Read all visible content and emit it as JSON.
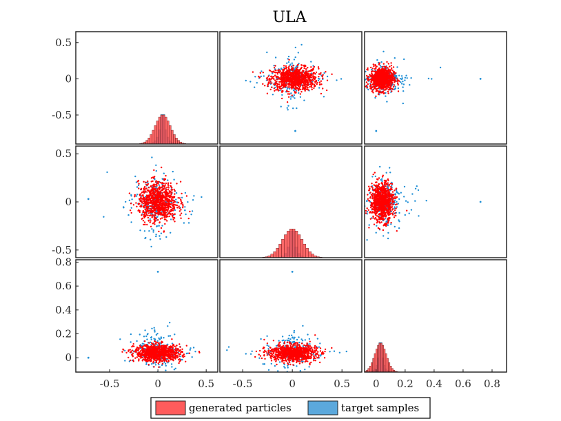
{
  "chart_data": {
    "type": "scatter",
    "subtype": "pair-plot-matrix",
    "title": "ULA",
    "grid": false,
    "legend_position": "bottom-center",
    "series": [
      {
        "name": "generated particles",
        "color": "#ff3b3b",
        "point_color": "#ff0000"
      },
      {
        "name": "target samples",
        "color": "#5ba8dc",
        "point_color": "#1f8fd6"
      }
    ],
    "panels": [
      {
        "row": 0,
        "col": 0,
        "kind": "histogram",
        "variable": 1,
        "xlim": [
          -0.85,
          0.62
        ],
        "ylim": [
          -0.9,
          0.65
        ],
        "yticks": [
          "0.5",
          "0",
          "-0.5"
        ],
        "xticks": [],
        "hist_center": 0.05,
        "generated_spread": 0.08,
        "target_spread": 0.03
      },
      {
        "row": 0,
        "col": 1,
        "kind": "scatter",
        "x_variable": 2,
        "y_variable": 1,
        "xlim": [
          -0.73,
          0.7
        ],
        "ylim": [
          -0.9,
          0.65
        ],
        "generated": {
          "x_center": 0.02,
          "y_center": 0.0,
          "x_spread": 0.12,
          "y_spread": 0.08
        },
        "target": {
          "x_center": 0.0,
          "y_center": 0.0,
          "x_spread": 0.14,
          "y_spread": 0.12
        },
        "outliers": [
          [
            0.03,
            -0.72
          ]
        ],
        "xticks": [],
        "yticks": []
      },
      {
        "row": 0,
        "col": 2,
        "kind": "scatter",
        "x_variable": 3,
        "y_variable": 1,
        "xlim": [
          -0.08,
          0.9
        ],
        "ylim": [
          -0.9,
          0.65
        ],
        "generated": {
          "x_center": 0.04,
          "y_center": 0.0,
          "x_spread": 0.04,
          "y_spread": 0.08
        },
        "target": {
          "x_center": 0.05,
          "y_center": 0.0,
          "x_spread": 0.08,
          "y_spread": 0.1
        },
        "outliers": [
          [
            0.72,
            0.0
          ],
          [
            0.0,
            -0.72
          ]
        ],
        "xticks": [],
        "yticks": []
      },
      {
        "row": 1,
        "col": 0,
        "kind": "scatter",
        "x_variable": 1,
        "y_variable": 2,
        "xlim": [
          -0.85,
          0.62
        ],
        "ylim": [
          -0.58,
          0.58
        ],
        "generated": {
          "x_center": 0.0,
          "y_center": 0.0,
          "x_spread": 0.1,
          "y_spread": 0.1
        },
        "target": {
          "x_center": 0.0,
          "y_center": 0.0,
          "x_spread": 0.12,
          "y_spread": 0.14
        },
        "outliers": [
          [
            -0.72,
            0.03
          ]
        ],
        "yticks": [
          "0.5",
          "0",
          "-0.5"
        ],
        "xticks": []
      },
      {
        "row": 1,
        "col": 1,
        "kind": "histogram",
        "variable": 2,
        "xlim": [
          -0.73,
          0.7
        ],
        "ylim": [
          -0.58,
          0.58
        ],
        "hist_center": 0.0,
        "generated_spread": 0.1,
        "target_spread": 0.03,
        "xticks": [],
        "yticks": []
      },
      {
        "row": 1,
        "col": 2,
        "kind": "scatter",
        "x_variable": 3,
        "y_variable": 2,
        "xlim": [
          -0.08,
          0.9
        ],
        "ylim": [
          -0.58,
          0.58
        ],
        "generated": {
          "x_center": 0.04,
          "y_center": 0.0,
          "x_spread": 0.04,
          "y_spread": 0.1
        },
        "target": {
          "x_center": 0.05,
          "y_center": 0.0,
          "x_spread": 0.08,
          "y_spread": 0.12
        },
        "outliers": [
          [
            0.72,
            0.0
          ]
        ],
        "xticks": [],
        "yticks": []
      },
      {
        "row": 2,
        "col": 0,
        "kind": "scatter",
        "x_variable": 1,
        "y_variable": 3,
        "xlim": [
          -0.85,
          0.62
        ],
        "ylim": [
          -0.12,
          0.82
        ],
        "generated": {
          "x_center": 0.0,
          "y_center": 0.04,
          "x_spread": 0.12,
          "y_spread": 0.035
        },
        "target": {
          "x_center": 0.0,
          "y_center": 0.05,
          "x_spread": 0.13,
          "y_spread": 0.07
        },
        "outliers": [
          [
            0.0,
            0.72
          ],
          [
            -0.72,
            0.0
          ]
        ],
        "yticks": [
          "0.8",
          "0.6",
          "0.4",
          "0.2",
          "0"
        ],
        "xticks": [
          "-0.5",
          "0",
          "0.5"
        ]
      },
      {
        "row": 2,
        "col": 1,
        "kind": "scatter",
        "x_variable": 2,
        "y_variable": 3,
        "xlim": [
          -0.73,
          0.7
        ],
        "ylim": [
          -0.12,
          0.82
        ],
        "generated": {
          "x_center": 0.0,
          "y_center": 0.04,
          "x_spread": 0.12,
          "y_spread": 0.035
        },
        "target": {
          "x_center": 0.0,
          "y_center": 0.05,
          "x_spread": 0.13,
          "y_spread": 0.07
        },
        "outliers": [
          [
            0.0,
            0.72
          ]
        ],
        "xticks": [
          "-0.5",
          "0",
          "0.5"
        ],
        "yticks": []
      },
      {
        "row": 2,
        "col": 2,
        "kind": "histogram",
        "variable": 3,
        "xlim": [
          -0.08,
          0.9
        ],
        "ylim": [
          -0.12,
          0.82
        ],
        "hist_center": 0.03,
        "generated_spread": 0.04,
        "target_spread": 0.015,
        "xticks": [
          "0",
          "0.2",
          "0.4",
          "0.6",
          "0.8"
        ],
        "yticks": []
      }
    ]
  }
}
